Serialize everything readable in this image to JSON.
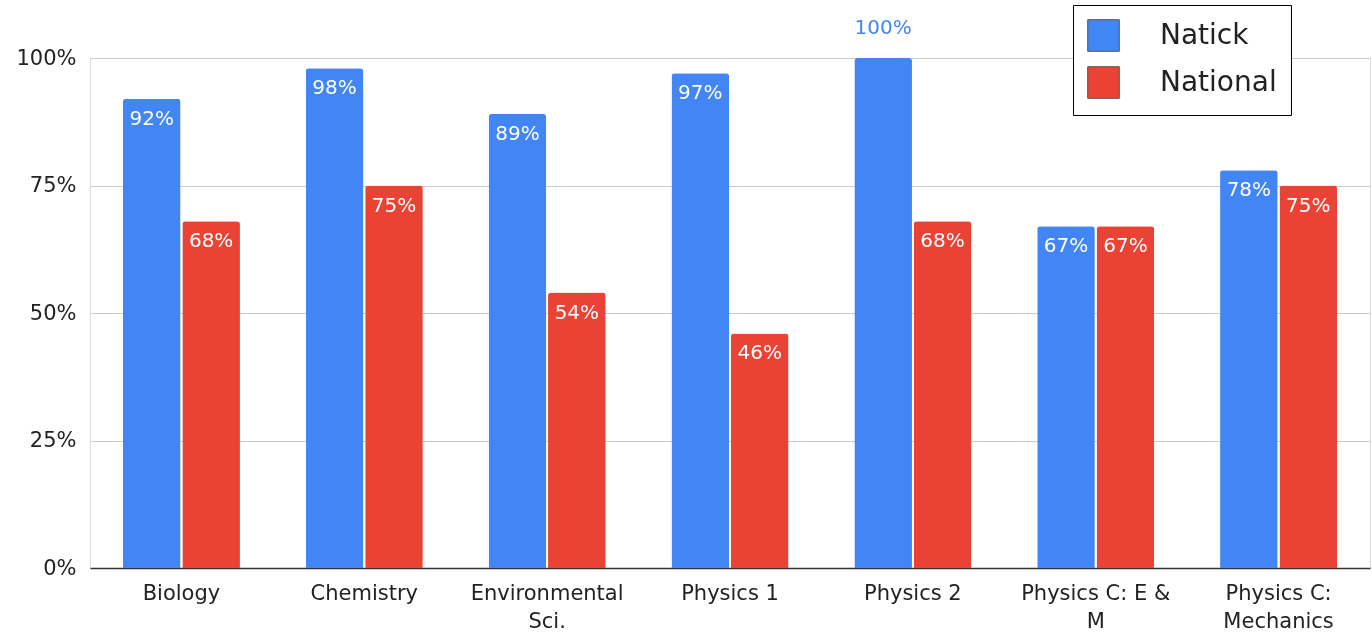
{
  "chart_data": {
    "type": "bar",
    "categories": [
      "Biology",
      "Chemistry",
      "Environmental Sci.",
      "Physics 1",
      "Physics 2",
      "Physics C: E & M",
      "Physics C: Mechanics"
    ],
    "series": [
      {
        "name": "Natick",
        "color": "#4285f4",
        "values": [
          92,
          98,
          89,
          97,
          100,
          67,
          78
        ],
        "value_labels": [
          "92%",
          "98%",
          "89%",
          "97%",
          "100%",
          "67%",
          "78%"
        ]
      },
      {
        "name": "National",
        "color": "#ea4335",
        "values": [
          68,
          75,
          54,
          46,
          68,
          67,
          75
        ],
        "value_labels": [
          "68%",
          "75%",
          "54%",
          "46%",
          "68%",
          "67%",
          "75%"
        ]
      }
    ],
    "ylim": [
      0,
      100
    ],
    "yticks": [
      {
        "value": 0,
        "label": "0%"
      },
      {
        "value": 25,
        "label": "25%"
      },
      {
        "value": 50,
        "label": "50%"
      },
      {
        "value": 75,
        "label": "75%"
      },
      {
        "value": 100,
        "label": "100%"
      }
    ],
    "grid": "y",
    "legend": "top right"
  }
}
